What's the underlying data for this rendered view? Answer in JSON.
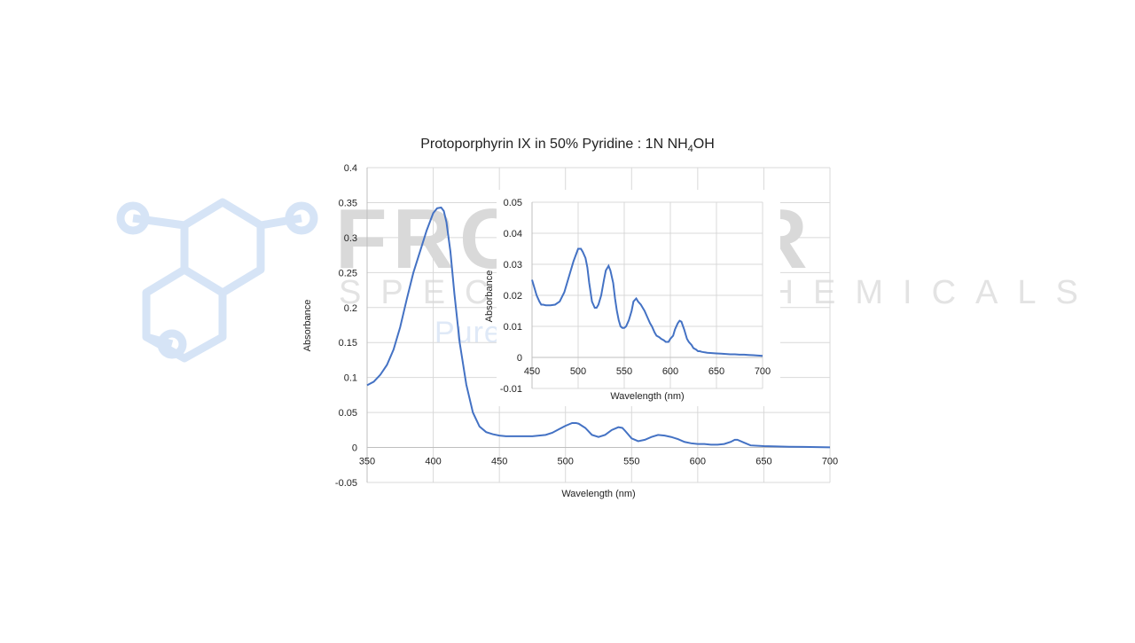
{
  "watermark": {
    "brand": "FRONTIER",
    "subtitle": "SPECIALTY CHEMICALS",
    "tagline": "Pure and (more) Simple",
    "colors": {
      "logo": "#cfe0f5",
      "text": "#d9d9d9"
    }
  },
  "chart_data": [
    {
      "type": "line",
      "title": "Protoporphyrin IX in 50% Pyridine : 1N NH",
      "title_subscript": "4",
      "title_suffix": "OH",
      "xlabel": "Wavelength (nm)",
      "ylabel": "Absorbance",
      "xlim": [
        350,
        700
      ],
      "ylim": [
        -0.05,
        0.4
      ],
      "xticks": [
        "350",
        "400",
        "450",
        "500",
        "550",
        "600",
        "650",
        "700"
      ],
      "yticks": [
        "0.4",
        "0.35",
        "0.3",
        "0.25",
        "0.2",
        "0.15",
        "0.1",
        "0.05",
        "0",
        "-0.05"
      ],
      "grid": true,
      "line_color": "#4472c4",
      "series": [
        {
          "x": [
            350,
            355,
            360,
            365,
            370,
            375,
            380,
            385,
            390,
            395,
            400,
            403,
            406,
            408,
            410,
            413,
            416,
            420,
            425,
            430,
            435,
            440,
            445,
            450,
            455,
            460,
            465,
            470,
            475,
            480,
            485,
            490,
            495,
            500,
            505,
            508,
            510,
            515,
            520,
            525,
            530,
            535,
            540,
            543,
            545,
            550,
            555,
            560,
            565,
            570,
            575,
            580,
            585,
            590,
            595,
            600,
            605,
            610,
            615,
            620,
            625,
            628,
            630,
            635,
            640,
            650,
            660,
            670,
            680,
            690,
            700
          ],
          "y": [
            0.089,
            0.094,
            0.104,
            0.118,
            0.14,
            0.172,
            0.212,
            0.25,
            0.28,
            0.31,
            0.335,
            0.342,
            0.343,
            0.338,
            0.322,
            0.28,
            0.22,
            0.15,
            0.09,
            0.05,
            0.03,
            0.022,
            0.019,
            0.017,
            0.016,
            0.016,
            0.016,
            0.016,
            0.016,
            0.017,
            0.018,
            0.021,
            0.026,
            0.031,
            0.035,
            0.035,
            0.034,
            0.028,
            0.018,
            0.015,
            0.018,
            0.025,
            0.029,
            0.028,
            0.024,
            0.013,
            0.009,
            0.011,
            0.015,
            0.018,
            0.017,
            0.015,
            0.012,
            0.008,
            0.006,
            0.005,
            0.005,
            0.004,
            0.004,
            0.005,
            0.008,
            0.011,
            0.011,
            0.007,
            0.003,
            0.002,
            0.0015,
            0.001,
            0.0008,
            0.0005,
            0.0003
          ]
        }
      ]
    },
    {
      "type": "line",
      "title": "",
      "xlabel": "Wavelength (nm)",
      "ylabel": "Absorbance",
      "xlim": [
        450,
        700
      ],
      "ylim": [
        -0.01,
        0.05
      ],
      "xticks": [
        "450",
        "500",
        "550",
        "600",
        "650",
        "700"
      ],
      "yticks": [
        "0.05",
        "0.04",
        "0.03",
        "0.02",
        "0.01",
        "0",
        "-0.01"
      ],
      "grid": true,
      "line_color": "#4472c4",
      "series": [
        {
          "x": [
            450,
            452,
            455,
            458,
            460,
            462,
            465,
            470,
            475,
            480,
            485,
            490,
            495,
            500,
            503,
            505,
            508,
            510,
            512,
            515,
            518,
            520,
            522,
            525,
            528,
            530,
            533,
            535,
            538,
            540,
            542,
            544,
            546,
            548,
            550,
            552,
            555,
            558,
            560,
            563,
            565,
            568,
            570,
            572,
            575,
            578,
            580,
            583,
            585,
            588,
            590,
            593,
            595,
            598,
            600,
            603,
            605,
            608,
            610,
            612,
            615,
            618,
            620,
            623,
            625,
            628,
            630,
            632,
            634,
            636,
            638,
            640,
            645,
            650,
            655,
            660,
            665,
            670,
            675,
            680,
            685,
            690,
            695,
            700
          ],
          "y": [
            0.025,
            0.023,
            0.02,
            0.018,
            0.017,
            0.017,
            0.0168,
            0.0168,
            0.017,
            0.018,
            0.021,
            0.026,
            0.031,
            0.035,
            0.035,
            0.034,
            0.032,
            0.029,
            0.024,
            0.018,
            0.016,
            0.016,
            0.017,
            0.02,
            0.025,
            0.028,
            0.0295,
            0.028,
            0.024,
            0.019,
            0.015,
            0.012,
            0.01,
            0.0095,
            0.0095,
            0.01,
            0.012,
            0.015,
            0.018,
            0.019,
            0.018,
            0.017,
            0.016,
            0.015,
            0.013,
            0.011,
            0.01,
            0.008,
            0.007,
            0.0065,
            0.006,
            0.0055,
            0.005,
            0.005,
            0.006,
            0.007,
            0.009,
            0.011,
            0.0118,
            0.0115,
            0.009,
            0.006,
            0.005,
            0.004,
            0.003,
            0.0025,
            0.002,
            0.002,
            0.0018,
            0.0017,
            0.0016,
            0.0015,
            0.0014,
            0.0013,
            0.0012,
            0.0011,
            0.001,
            0.001,
            0.0009,
            0.0009,
            0.0008,
            0.0007,
            0.0006,
            0.0005
          ]
        }
      ]
    }
  ]
}
